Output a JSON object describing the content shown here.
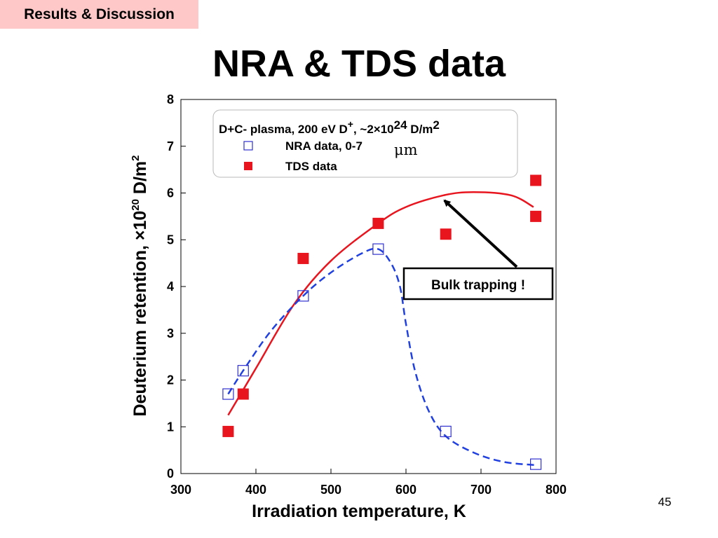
{
  "slide": {
    "section_tag": "Results & Discussion",
    "title": "NRA & TDS data",
    "page_number": "45"
  },
  "chart_data": {
    "type": "scatter",
    "xlabel": "Irradiation temperature, K",
    "ylabel_parts": [
      "Deuterium retention, ×10",
      "20",
      " D/m",
      "2"
    ],
    "xlim": [
      300,
      800
    ],
    "ylim": [
      0,
      8
    ],
    "x_ticks": [
      "300",
      "400",
      "500",
      "600",
      "700",
      "800"
    ],
    "y_ticks": [
      "0",
      "1",
      "2",
      "3",
      "4",
      "5",
      "6",
      "7",
      "8"
    ],
    "grid": false,
    "legend": {
      "position": "top",
      "title_parts": [
        "D+C- plasma, 200 eV D",
        "+",
        ", ~2×10",
        "24",
        " D/m",
        "2"
      ],
      "series_labels": [
        "NRA data, 0-7",
        "TDS data"
      ],
      "um_text": "μm"
    },
    "series": [
      {
        "name": "NRA data, 0-7 μm",
        "marker": "open-square",
        "color": "#3030d0",
        "x": [
          363,
          383,
          463,
          563,
          653,
          773
        ],
        "y": [
          1.7,
          2.2,
          3.8,
          4.8,
          0.9,
          0.2
        ]
      },
      {
        "name": "TDS data",
        "marker": "filled-square",
        "color": "#e8141e",
        "x": [
          363,
          383,
          463,
          563,
          653,
          773,
          773
        ],
        "y": [
          0.9,
          1.7,
          4.6,
          5.35,
          5.12,
          5.5,
          6.27
        ]
      }
    ],
    "fit_curves": [
      {
        "series": "TDS data",
        "style": "solid",
        "color": "#e8141e",
        "x": [
          363,
          400,
          450,
          500,
          563,
          600,
          650,
          690,
          740,
          770
        ],
        "y": [
          1.25,
          2.25,
          3.6,
          4.55,
          5.35,
          5.7,
          5.95,
          6.02,
          5.95,
          5.7
        ]
      },
      {
        "series": "NRA data, 0-7 μm",
        "style": "dashed",
        "color": "#2040e0",
        "x": [
          363,
          383,
          420,
          463,
          500,
          540,
          563,
          580,
          592,
          600,
          612,
          630,
          653,
          690,
          730,
          773
        ],
        "y": [
          1.7,
          2.2,
          3.05,
          3.8,
          4.3,
          4.7,
          4.8,
          4.5,
          4.0,
          3.2,
          2.2,
          1.35,
          0.8,
          0.45,
          0.25,
          0.18
        ]
      }
    ],
    "annotation": {
      "text": "Bulk trapping !",
      "arrow_to": [
        670,
        5.9
      ]
    }
  }
}
